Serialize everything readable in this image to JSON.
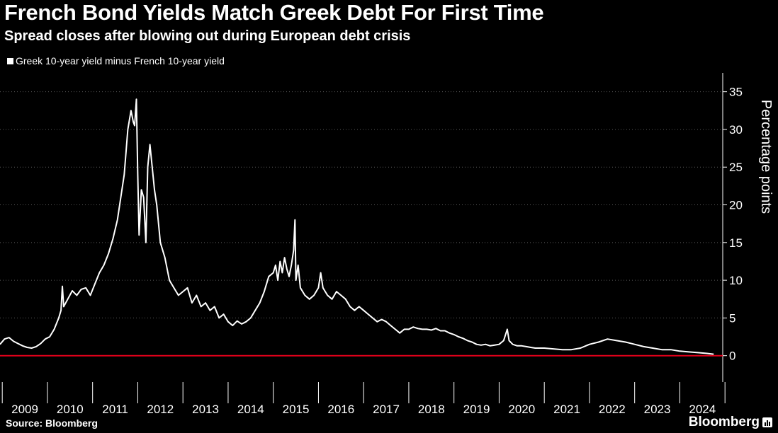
{
  "header": {
    "title": "French Bond Yields Match Greek Debt For First Time",
    "subtitle": "Spread closes after blowing out during European debt crisis"
  },
  "footer": {
    "source": "Source: Bloomberg",
    "brand": "Bloomberg"
  },
  "colors": {
    "background": "#000000",
    "series": "#ffffff",
    "zero_line": "#e3001b",
    "grid": "#5a5a5a"
  },
  "chart_data": {
    "type": "line",
    "title": "French Bond Yields Match Greek Debt For First Time",
    "subtitle": "Spread closes after blowing out during European debt crisis",
    "xlabel": "",
    "ylabel": "Percentage points",
    "ylim": [
      -3.5,
      37.5
    ],
    "xlim": [
      2008.95,
      2024.95
    ],
    "y_ticks": [
      0,
      5,
      10,
      15,
      20,
      25,
      30,
      35
    ],
    "x_ticks": [
      "2009",
      "2010",
      "2011",
      "2012",
      "2013",
      "2014",
      "2015",
      "2016",
      "2017",
      "2018",
      "2019",
      "2020",
      "2021",
      "2022",
      "2023",
      "2024"
    ],
    "grid": true,
    "reference_line": {
      "y": 0,
      "color": "#e3001b"
    },
    "legend": "top-left",
    "series": [
      {
        "name": "Greek 10-year yield minus French 10-year yield",
        "x": [
          2008.95,
          2009.05,
          2009.15,
          2009.25,
          2009.35,
          2009.45,
          2009.55,
          2009.65,
          2009.75,
          2009.85,
          2009.95,
          2010.05,
          2010.15,
          2010.25,
          2010.3,
          2010.33,
          2010.36,
          2010.45,
          2010.55,
          2010.65,
          2010.75,
          2010.85,
          2010.95,
          2011.05,
          2011.15,
          2011.25,
          2011.35,
          2011.45,
          2011.55,
          2011.6,
          2011.7,
          2011.78,
          2011.85,
          2011.9,
          2011.93,
          2011.97,
          2012.0,
          2012.03,
          2012.08,
          2012.13,
          2012.18,
          2012.22,
          2012.27,
          2012.32,
          2012.37,
          2012.42,
          2012.5,
          2012.6,
          2012.7,
          2012.8,
          2012.9,
          2013.0,
          2013.1,
          2013.2,
          2013.3,
          2013.4,
          2013.5,
          2013.6,
          2013.7,
          2013.8,
          2013.9,
          2014.0,
          2014.1,
          2014.2,
          2014.3,
          2014.4,
          2014.5,
          2014.6,
          2014.7,
          2014.8,
          2014.9,
          2015.0,
          2015.05,
          2015.1,
          2015.15,
          2015.2,
          2015.25,
          2015.3,
          2015.35,
          2015.4,
          2015.45,
          2015.48,
          2015.5,
          2015.55,
          2015.6,
          2015.7,
          2015.8,
          2015.9,
          2016.0,
          2016.05,
          2016.1,
          2016.15,
          2016.2,
          2016.3,
          2016.4,
          2016.5,
          2016.6,
          2016.7,
          2016.8,
          2016.9,
          2017.0,
          2017.1,
          2017.2,
          2017.3,
          2017.4,
          2017.5,
          2017.6,
          2017.7,
          2017.8,
          2017.9,
          2018.0,
          2018.1,
          2018.2,
          2018.3,
          2018.4,
          2018.5,
          2018.6,
          2018.7,
          2018.8,
          2018.9,
          2019.0,
          2019.1,
          2019.2,
          2019.3,
          2019.4,
          2019.5,
          2019.6,
          2019.7,
          2019.8,
          2019.9,
          2020.0,
          2020.1,
          2020.18,
          2020.22,
          2020.3,
          2020.4,
          2020.5,
          2020.6,
          2020.7,
          2020.8,
          2020.9,
          2021.0,
          2021.2,
          2021.4,
          2021.6,
          2021.8,
          2022.0,
          2022.2,
          2022.4,
          2022.6,
          2022.8,
          2023.0,
          2023.2,
          2023.4,
          2023.6,
          2023.8,
          2024.0,
          2024.2,
          2024.4,
          2024.6,
          2024.75
        ],
        "values": [
          1.5,
          2.2,
          2.4,
          1.9,
          1.6,
          1.3,
          1.1,
          1.0,
          1.2,
          1.6,
          2.2,
          2.5,
          3.5,
          5.0,
          6.0,
          9.2,
          6.5,
          7.5,
          8.6,
          8.0,
          8.8,
          9.0,
          8.0,
          9.5,
          11.0,
          12.0,
          13.5,
          15.5,
          18.0,
          20.0,
          24.0,
          30.0,
          32.5,
          31.0,
          30.5,
          34.0,
          24.0,
          16.0,
          22.0,
          21.0,
          15.0,
          25.0,
          28.0,
          25.0,
          22.0,
          20.0,
          15.0,
          13.0,
          10.0,
          9.0,
          8.0,
          8.5,
          9.0,
          7.0,
          8.0,
          6.5,
          7.0,
          6.0,
          6.5,
          5.0,
          5.5,
          4.5,
          4.0,
          4.6,
          4.2,
          4.5,
          5.0,
          6.0,
          7.0,
          8.5,
          10.5,
          11.0,
          12.0,
          10.0,
          12.5,
          11.0,
          13.0,
          11.5,
          10.5,
          12.0,
          14.0,
          18.0,
          10.0,
          12.0,
          9.0,
          8.0,
          7.5,
          8.0,
          9.0,
          11.0,
          9.0,
          8.5,
          8.0,
          7.5,
          8.5,
          8.0,
          7.5,
          6.5,
          6.0,
          6.5,
          6.0,
          5.5,
          5.0,
          4.5,
          4.8,
          4.5,
          4.0,
          3.5,
          3.0,
          3.5,
          3.5,
          3.8,
          3.6,
          3.5,
          3.5,
          3.4,
          3.6,
          3.3,
          3.3,
          3.0,
          2.8,
          2.5,
          2.3,
          2.0,
          1.8,
          1.5,
          1.4,
          1.5,
          1.3,
          1.4,
          1.5,
          2.0,
          3.5,
          2.0,
          1.5,
          1.3,
          1.3,
          1.2,
          1.1,
          1.0,
          1.0,
          1.0,
          0.9,
          0.8,
          0.8,
          1.0,
          1.5,
          1.8,
          2.2,
          2.0,
          1.8,
          1.5,
          1.2,
          1.0,
          0.8,
          0.8,
          0.6,
          0.5,
          0.4,
          0.3,
          0.2
        ]
      }
    ]
  }
}
